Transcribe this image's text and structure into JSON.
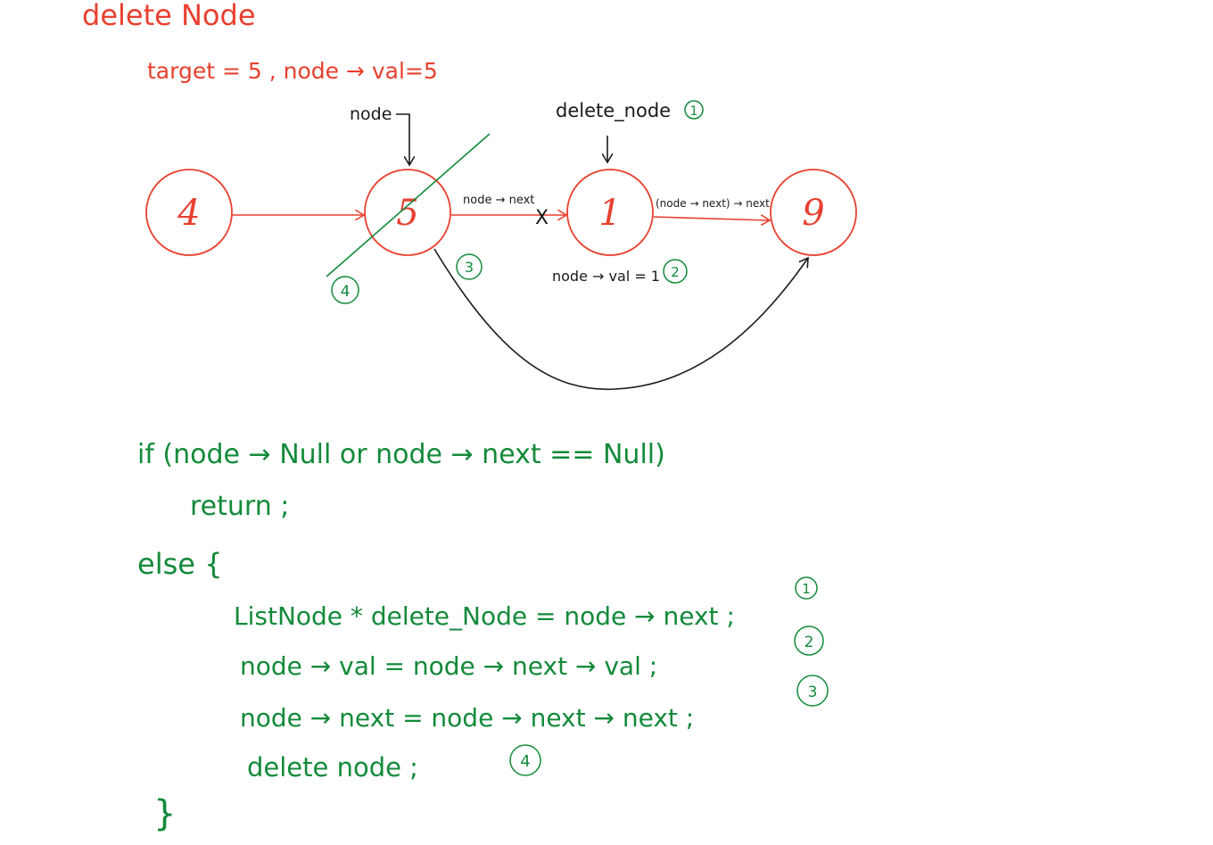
{
  "title": "delete Node",
  "condition": "target = 5 , node → val=5",
  "nodes": [
    {
      "value": "4"
    },
    {
      "value": "5"
    },
    {
      "value": "1"
    },
    {
      "value": "9"
    }
  ],
  "labels": {
    "node_pointer": "node",
    "delete_node_pointer": "delete_node",
    "edge_node_next": "node → next",
    "edge_node_next_next": "(node → next) → next",
    "broken_mark": "X",
    "val_assign": "node → val = 1"
  },
  "steps": {
    "one": "1",
    "two": "2",
    "three": "3",
    "four": "4"
  },
  "code": {
    "if_line": "if (node → Null  or  node → next == Null)",
    "return_line": "return ;",
    "else_line": "else {",
    "line1": "ListNode * delete_Node  =  node → next ;",
    "line2": "node → val  =  node → next → val ;",
    "line3": "node → next  =  node → next → next ;",
    "line4": "delete   node  ;",
    "close_brace": "}"
  },
  "colors": {
    "red": "#e8402f",
    "green": "#138a3a",
    "black": "#1a1a1a"
  }
}
